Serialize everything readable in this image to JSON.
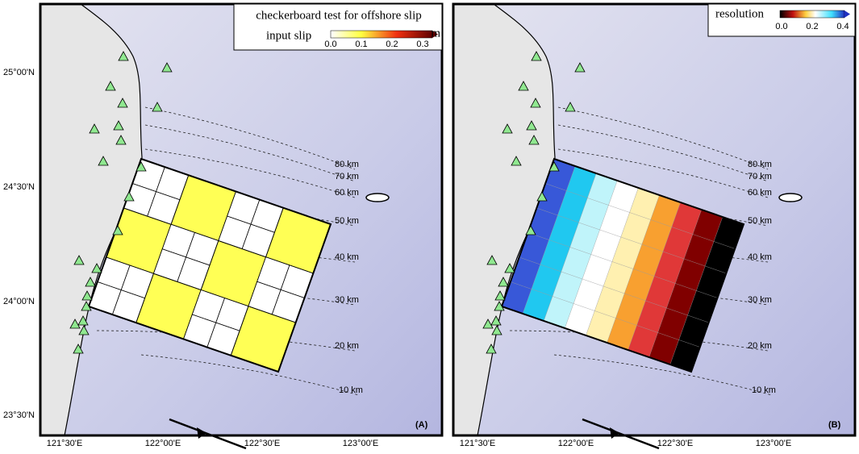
{
  "panels": [
    {
      "label": "(A)",
      "legend": {
        "title": "checkerboard test for offshore slip",
        "colorbar_label": "input slip",
        "ticks": [
          "0.0",
          "0.1",
          "0.2",
          "0.3"
        ],
        "unit": "m"
      }
    },
    {
      "label": "(B)",
      "legend": {
        "title": "resolution",
        "ticks": [
          "0.0",
          "0.2",
          "0.4"
        ]
      }
    }
  ],
  "axes": {
    "y_labels": [
      "25°00'N",
      "24°30'N",
      "24°00'N",
      "23°30'N"
    ],
    "x_labels": [
      "121°30'E",
      "122°00'E",
      "122°30'E",
      "123°00'E"
    ]
  },
  "depth_contours": [
    "80 km",
    "70 km",
    "60 km",
    "50 km",
    "40 km",
    "30 km",
    "20 km",
    "10 km"
  ]
}
